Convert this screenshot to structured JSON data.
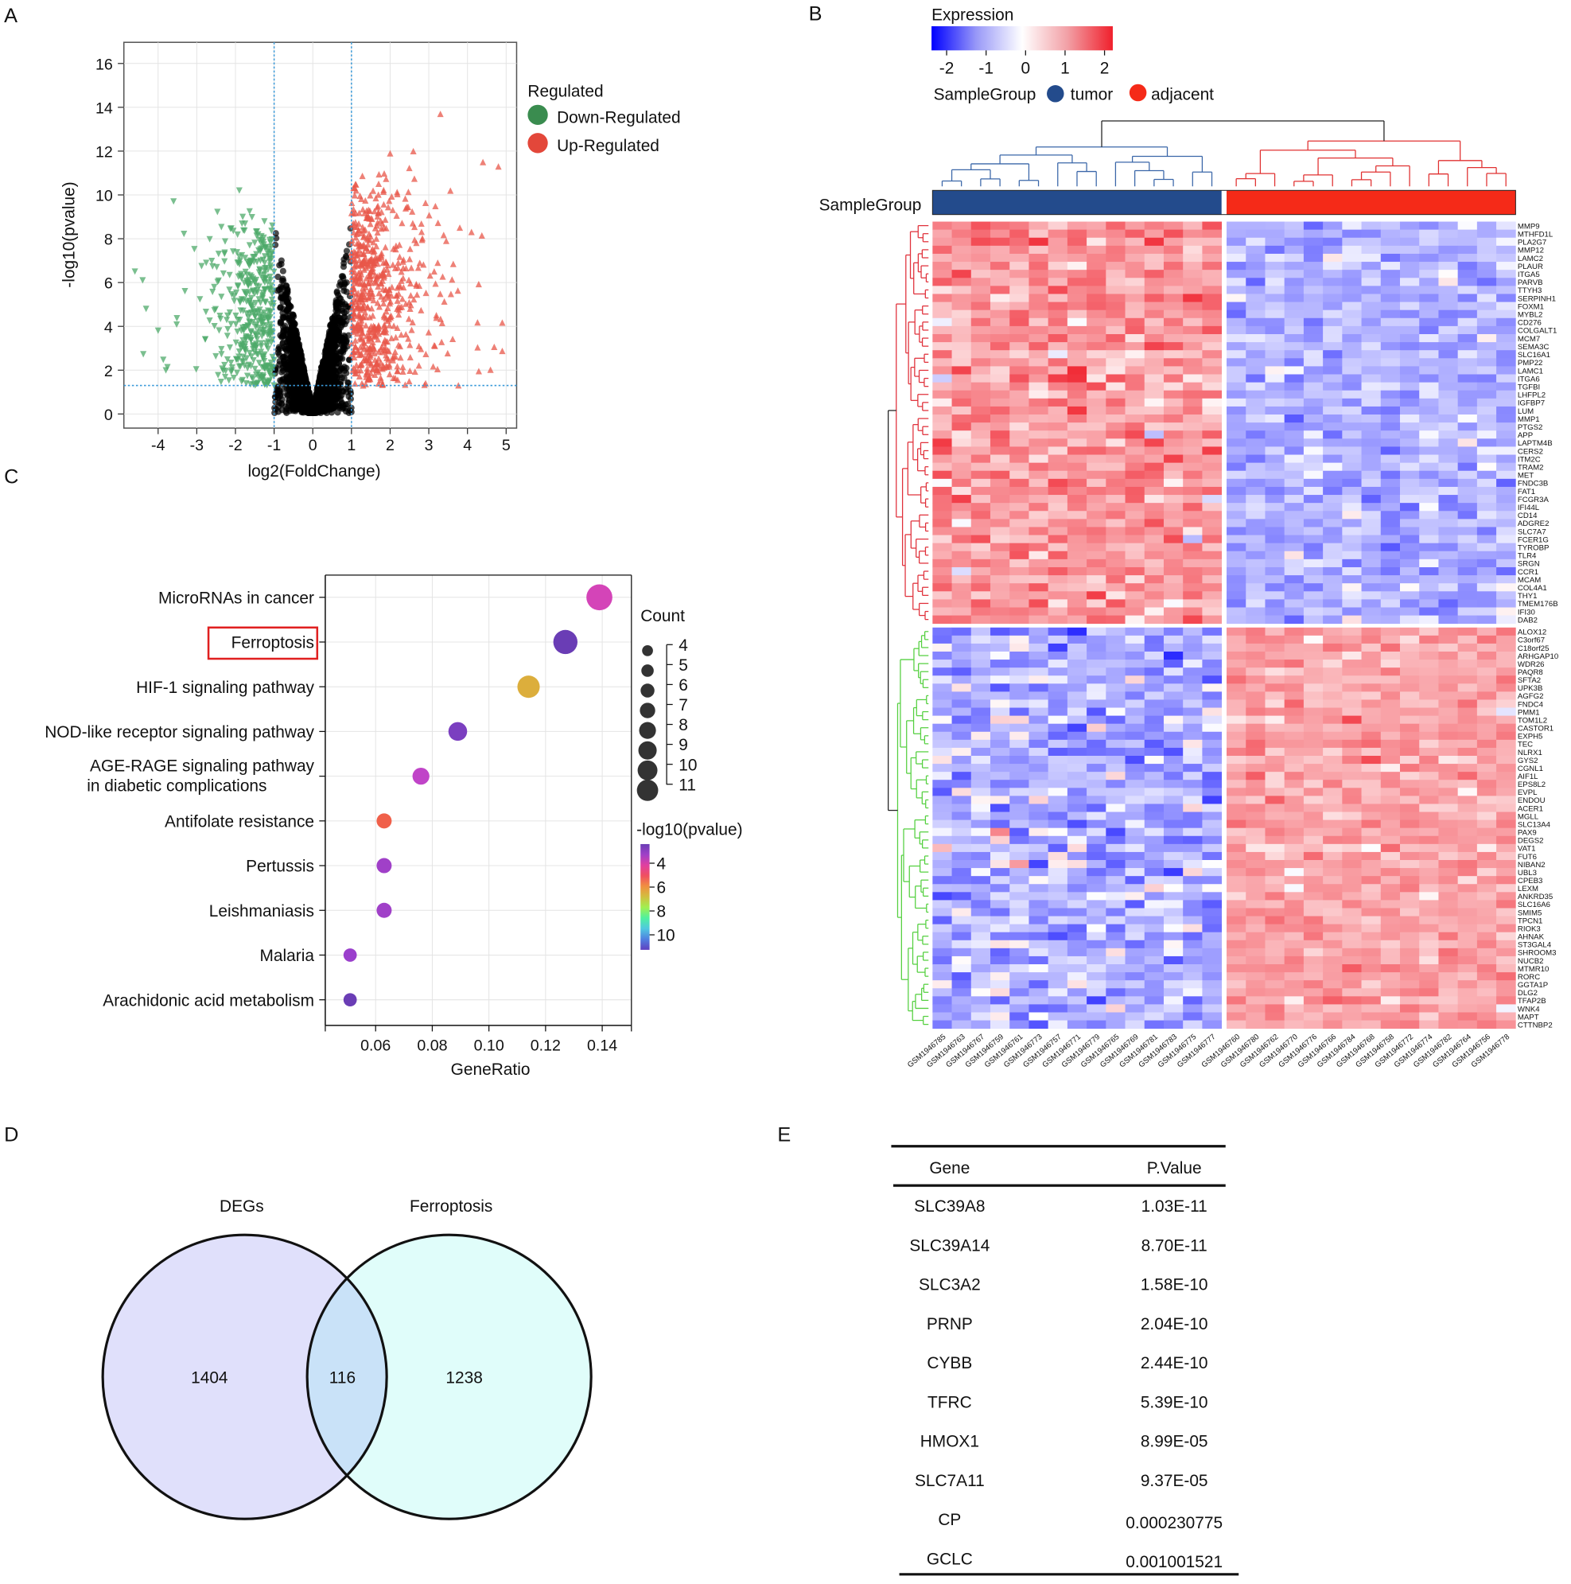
{
  "panels": {
    "A": "A",
    "B": "B",
    "C": "C",
    "D": "D",
    "E": "E"
  },
  "chart_data": [
    {
      "panel": "A",
      "type": "scatter",
      "xlabel": "log2(FoldChange)",
      "ylabel": "-log10(pvalue)",
      "xlim": [
        -4.9,
        5.3
      ],
      "ylim": [
        -0.6,
        16.5
      ],
      "xticks": [
        -4,
        -3,
        -2,
        -1,
        0,
        1,
        2,
        3,
        4,
        5
      ],
      "yticks": [
        0,
        2,
        4,
        6,
        8,
        10,
        12,
        14,
        16
      ],
      "grid": true,
      "thresholds": {
        "log2fc": [
          -1,
          1
        ],
        "neg_log10_pvalue": 1.3,
        "color": "#3a9ad9"
      },
      "legend": {
        "title": "Regulated",
        "placement": "right",
        "items": [
          {
            "label": "Down-Regulated",
            "color": "#3a8c4f"
          },
          {
            "label": "Up-Regulated",
            "color": "#e3473a"
          }
        ]
      },
      "colors": {
        "not_significant": "#000000",
        "down": "#4daa6a",
        "up": "#e8574a"
      },
      "notable_points": [
        {
          "x": 3.3,
          "y": 13.7,
          "group": "up"
        },
        {
          "x": 2.6,
          "y": 12.0,
          "group": "up"
        },
        {
          "x": 2.0,
          "y": 11.9,
          "group": "up"
        },
        {
          "x": 4.4,
          "y": 11.5,
          "group": "up"
        },
        {
          "x": 4.8,
          "y": 11.3,
          "group": "up"
        },
        {
          "x": -1.9,
          "y": 10.2,
          "group": "down"
        },
        {
          "x": -3.6,
          "y": 9.7,
          "group": "down"
        },
        {
          "x": -4.6,
          "y": 6.5,
          "group": "down"
        },
        {
          "x": -4.4,
          "y": 6.1,
          "group": "down"
        },
        {
          "x": -4.0,
          "y": 3.8,
          "group": "down"
        }
      ]
    },
    {
      "panel": "B",
      "type": "heatmap",
      "legend": {
        "expression_title": "Expression",
        "scale_ticks": [
          "-2",
          "-1",
          "0",
          "1",
          "2"
        ],
        "scale_range": [
          -2,
          2
        ],
        "scale_colors": {
          "low": "#0000ff",
          "mid": "#ffffff",
          "high": "#ff0000"
        },
        "group_title": "SampleGroup",
        "groups": [
          {
            "label": "tumor",
            "color": "#234b8c"
          },
          {
            "label": "adjacent",
            "color": "#f52a18"
          }
        ]
      },
      "annotation_label": "SampleGroup",
      "samples": {
        "tumor": [
          "GSM1946785",
          "GSM1946763",
          "GSM1946767",
          "GSM1946759",
          "GSM1946761",
          "GSM1946773",
          "GSM1946757",
          "GSM1946771",
          "GSM1946779",
          "GSM1946765",
          "GSM1946769",
          "GSM1946781",
          "GSM1946783",
          "GSM1946775",
          "GSM1946777"
        ],
        "adjacent": [
          "GSM1946760",
          "GSM1946780",
          "GSM1946762",
          "GSM1946770",
          "GSM1946776",
          "GSM1946766",
          "GSM1946784",
          "GSM1946768",
          "GSM1946758",
          "GSM1946772",
          "GSM1946774",
          "GSM1946782",
          "GSM1946764",
          "GSM1946756",
          "GSM1946778"
        ]
      },
      "genes_up_in_tumor": [
        "MMP9",
        "MTHFD1L",
        "PLA2G7",
        "MMP12",
        "LAMC2",
        "PLAUR",
        "ITGA5",
        "PARVB",
        "TTYH3",
        "SERPINH1",
        "FOXM1",
        "MYBL2",
        "CD276",
        "COLGALT1",
        "MCM7",
        "SEMA3C",
        "SLC16A1",
        "PMP22",
        "LAMC1",
        "ITGA6",
        "TGFBI",
        "LHFPL2",
        "IGFBP7",
        "LUM",
        "MMP1",
        "PTGS2",
        "APP",
        "LAPTM4B",
        "CERS2",
        "ITM2C",
        "TRAM2",
        "MET",
        "FNDC3B",
        "FAT1",
        "FCGR3A",
        "IFI44L",
        "CD14",
        "ADGRE2",
        "SLC7A7",
        "FCER1G",
        "TYROBP",
        "TLR4",
        "SRGN",
        "CCR1",
        "MCAM",
        "COL4A1",
        "THY1",
        "TMEM176B",
        "IFI30",
        "DAB2"
      ],
      "genes_down_in_tumor": [
        "ALOX12",
        "C3orf67",
        "C18orf25",
        "ARHGAP10",
        "WDR26",
        "PAQR8",
        "SFTA2",
        "UPK3B",
        "AGFG2",
        "FNDC4",
        "PMM1",
        "TOM1L2",
        "CASTOR1",
        "EXPH5",
        "TEC",
        "NLRX1",
        "GYS2",
        "CGNL1",
        "AIF1L",
        "EPS8L2",
        "EVPL",
        "ENDOU",
        "ACER1",
        "MGLL",
        "SLC13A4",
        "PAX9",
        "DEGS2",
        "VAT1",
        "FUT6",
        "NIBAN2",
        "UBL3",
        "CPEB3",
        "LEXM",
        "ANKRD35",
        "SLC16A6",
        "SMIM5",
        "TPCN1",
        "RIOK3",
        "AHNAK",
        "ST3GAL4",
        "SHROOM3",
        "NUCB2",
        "MTMR10",
        "RORC",
        "GGTA1P",
        "DLG2",
        "TFAP2B",
        "WNK4",
        "MAPT",
        "CTTNBP2"
      ],
      "approx_mean_zscore": {
        "up_genes": {
          "tumor": 0.8,
          "adjacent": -0.5
        },
        "down_genes": {
          "tumor": -0.5,
          "adjacent": 0.7
        }
      },
      "row_dendrogram_colors": {
        "up_cluster": "#e0303a",
        "down_cluster": "#55d040"
      }
    },
    {
      "panel": "C",
      "type": "scatter",
      "subtype": "bubble",
      "xlabel": "GeneRatio",
      "xlim": [
        0.0415,
        0.1505
      ],
      "xticks": [
        "0.06",
        "0.08",
        "0.10",
        "0.12",
        "0.14"
      ],
      "grid": true,
      "highlighted_term": "Ferroptosis",
      "highlight_color": "#e02020",
      "terms": [
        {
          "label": "MicroRNAs in cancer",
          "label2": "",
          "gene_ratio": 0.139,
          "count": 11,
          "neg_log10_p": 4.6,
          "color": "#d444b8"
        },
        {
          "label": "Ferroptosis",
          "label2": "",
          "gene_ratio": 0.127,
          "count": 10,
          "neg_log10_p": 3.8,
          "color": "#6a3db5"
        },
        {
          "label": "HIF-1 signaling pathway",
          "label2": "",
          "gene_ratio": 0.114,
          "count": 9,
          "neg_log10_p": 6.5,
          "color": "#dcae3c"
        },
        {
          "label": "NOD-like receptor signaling pathway",
          "label2": "",
          "gene_ratio": 0.089,
          "count": 7,
          "neg_log10_p": 4.0,
          "color": "#7b3fc0"
        },
        {
          "label": "AGE-RAGE signaling pathway",
          "label2": "in diabetic complications",
          "gene_ratio": 0.076,
          "count": 6,
          "neg_log10_p": 4.4,
          "color": "#c044c8"
        },
        {
          "label": "Antifolate resistance",
          "label2": "",
          "gene_ratio": 0.063,
          "count": 5,
          "neg_log10_p": 5.6,
          "color": "#f0604a"
        },
        {
          "label": "Pertussis",
          "label2": "",
          "gene_ratio": 0.063,
          "count": 5,
          "neg_log10_p": 4.2,
          "color": "#a040c8"
        },
        {
          "label": "Leishmaniasis",
          "label2": "",
          "gene_ratio": 0.063,
          "count": 5,
          "neg_log10_p": 4.2,
          "color": "#a040c8"
        },
        {
          "label": "Malaria",
          "label2": "",
          "gene_ratio": 0.051,
          "count": 4,
          "neg_log10_p": 4.1,
          "color": "#9a3fcc"
        },
        {
          "label": "Arachidonic acid metabolism",
          "label2": "",
          "gene_ratio": 0.051,
          "count": 4,
          "neg_log10_p": 3.8,
          "color": "#6a3db5"
        }
      ],
      "size_legend": {
        "title": "Count",
        "values": [
          "4",
          "5",
          "6",
          "7",
          "8",
          "9",
          "10",
          "11"
        ]
      },
      "color_legend": {
        "title": "-log10(pvalue)",
        "ticks": [
          "4",
          "6",
          "8",
          "10"
        ],
        "gradient": [
          "#6a3db5",
          "#a040c8",
          "#e040a0",
          "#f05060",
          "#f09040",
          "#d0c040",
          "#a0f050",
          "#50f0a0",
          "#50c8e0",
          "#5080e0",
          "#6040c0"
        ]
      }
    },
    {
      "panel": "D",
      "type": "venn",
      "sets": [
        {
          "label": "DEGs",
          "only": "1404",
          "color": "#e0e0fb"
        },
        {
          "label": "Ferroptosis",
          "only": "1238",
          "color": "#e0fdfa"
        }
      ],
      "intersection": "116",
      "intersection_color": "#c9e2f8"
    },
    {
      "panel": "E",
      "type": "table",
      "columns": [
        "Gene",
        "P.Value"
      ],
      "rows": [
        [
          "SLC39A8",
          "1.03E-11"
        ],
        [
          "SLC39A14",
          "8.70E-11"
        ],
        [
          "SLC3A2",
          "1.58E-10"
        ],
        [
          "PRNP",
          "2.04E-10"
        ],
        [
          "CYBB",
          "2.44E-10"
        ],
        [
          "TFRC",
          "5.39E-10"
        ],
        [
          "HMOX1",
          "8.99E-05"
        ],
        [
          "SLC7A11",
          "9.37E-05"
        ],
        [
          "CP",
          "0.000230775"
        ],
        [
          "GCLC",
          "0.001001521"
        ]
      ]
    }
  ]
}
